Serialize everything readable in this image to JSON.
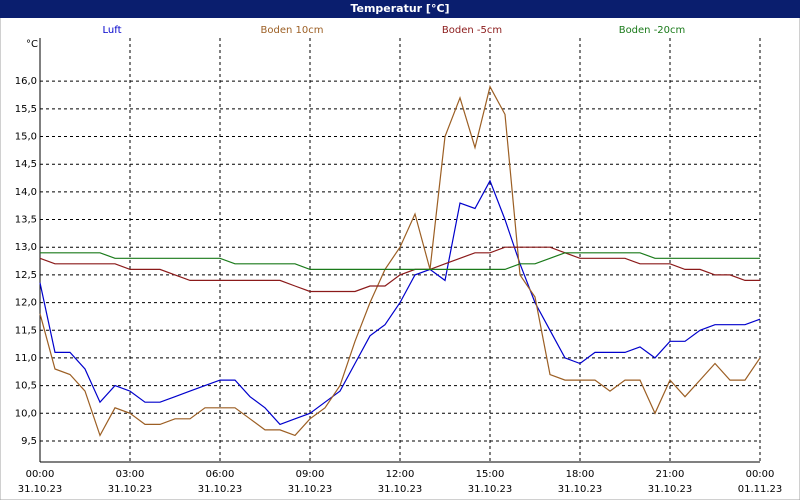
{
  "chart_data": {
    "type": "line",
    "title": "Temperatur [°C]",
    "y_unit": "°C",
    "grid": true,
    "legend": "top",
    "x": [
      0,
      0.5,
      1,
      1.5,
      2,
      2.5,
      3,
      3.5,
      4,
      4.5,
      5,
      5.5,
      6,
      6.5,
      7,
      7.5,
      8,
      8.5,
      9,
      9.5,
      10,
      10.5,
      11,
      11.5,
      12,
      12.5,
      13,
      13.5,
      14,
      14.5,
      15,
      15.5,
      16,
      16.5,
      17,
      17.5,
      18,
      18.5,
      19,
      19.5,
      20,
      20.5,
      21,
      21.5,
      22,
      22.5,
      23,
      23.5,
      24
    ],
    "xlim": [
      0,
      24
    ],
    "xticks": [
      {
        "value": 0,
        "label": "00:00"
      },
      {
        "value": 3,
        "label": "03:00"
      },
      {
        "value": 6,
        "label": "06:00"
      },
      {
        "value": 9,
        "label": "09:00"
      },
      {
        "value": 12,
        "label": "12:00"
      },
      {
        "value": 15,
        "label": "15:00"
      },
      {
        "value": 18,
        "label": "18:00"
      },
      {
        "value": 21,
        "label": "21:00"
      },
      {
        "value": 24,
        "label": "00:00"
      }
    ],
    "xtick_dates": [
      "31.10.23",
      "31.10.23",
      "31.10.23",
      "31.10.23",
      "31.10.23",
      "31.10.23",
      "31.10.23",
      "31.10.23",
      "01.11.23"
    ],
    "ylim": [
      9.12,
      16.78
    ],
    "yticks": [
      {
        "value": 9.5,
        "label": "9,5"
      },
      {
        "value": 10,
        "label": "10,0"
      },
      {
        "value": 10.5,
        "label": "10,5"
      },
      {
        "value": 11,
        "label": "11,0"
      },
      {
        "value": 11.5,
        "label": "11,5"
      },
      {
        "value": 12,
        "label": "12,0"
      },
      {
        "value": 12.5,
        "label": "12,5"
      },
      {
        "value": 13,
        "label": "13,0"
      },
      {
        "value": 13.5,
        "label": "13,5"
      },
      {
        "value": 14,
        "label": "14,0"
      },
      {
        "value": 14.5,
        "label": "14,5"
      },
      {
        "value": 15,
        "label": "15,0"
      },
      {
        "value": 15.5,
        "label": "15,5"
      },
      {
        "value": 16,
        "label": "16,0"
      }
    ],
    "series": [
      {
        "name": "Luft",
        "color": "#0000cc",
        "values": [
          12.36,
          11.1,
          11.1,
          10.8,
          10.2,
          10.5,
          10.4,
          10.2,
          10.2,
          10.3,
          10.4,
          10.5,
          10.6,
          10.6,
          10.3,
          10.1,
          9.8,
          9.9,
          10.0,
          10.2,
          10.4,
          10.9,
          11.4,
          11.6,
          12.0,
          12.5,
          12.6,
          12.4,
          13.8,
          13.7,
          14.2,
          13.5,
          12.7,
          12.0,
          11.5,
          11.0,
          10.9,
          11.1,
          11.1,
          11.1,
          11.2,
          11.0,
          11.3,
          11.3,
          11.5,
          11.6,
          11.6,
          11.6,
          11.7
        ]
      },
      {
        "name": "Boden 10cm",
        "color": "#9c5f24",
        "values": [
          11.8,
          10.8,
          10.7,
          10.4,
          9.6,
          10.1,
          10.0,
          9.8,
          9.8,
          9.9,
          9.9,
          10.1,
          10.1,
          10.1,
          9.9,
          9.7,
          9.7,
          9.6,
          9.9,
          10.1,
          10.5,
          11.3,
          12.0,
          12.6,
          13.0,
          13.6,
          12.6,
          15.0,
          15.7,
          14.8,
          15.9,
          15.4,
          12.5,
          12.1,
          10.7,
          10.6,
          10.6,
          10.6,
          10.4,
          10.6,
          10.6,
          10.0,
          10.6,
          10.3,
          10.6,
          10.9,
          10.6,
          10.6,
          11.0
        ]
      },
      {
        "name": "Boden -5cm",
        "color": "#8b1a1a",
        "values": [
          12.8,
          12.7,
          12.7,
          12.7,
          12.7,
          12.7,
          12.6,
          12.6,
          12.6,
          12.5,
          12.4,
          12.4,
          12.4,
          12.4,
          12.4,
          12.4,
          12.4,
          12.3,
          12.2,
          12.2,
          12.2,
          12.2,
          12.3,
          12.3,
          12.5,
          12.6,
          12.6,
          12.7,
          12.8,
          12.9,
          12.9,
          13.0,
          13.0,
          13.0,
          13.0,
          12.9,
          12.8,
          12.8,
          12.8,
          12.8,
          12.7,
          12.7,
          12.7,
          12.6,
          12.6,
          12.5,
          12.5,
          12.4,
          12.4
        ]
      },
      {
        "name": "Boden -20cm",
        "color": "#1a7a1a",
        "values": [
          12.9,
          12.9,
          12.9,
          12.9,
          12.9,
          12.8,
          12.8,
          12.8,
          12.8,
          12.8,
          12.8,
          12.8,
          12.8,
          12.7,
          12.7,
          12.7,
          12.7,
          12.7,
          12.6,
          12.6,
          12.6,
          12.6,
          12.6,
          12.6,
          12.6,
          12.6,
          12.6,
          12.6,
          12.6,
          12.6,
          12.6,
          12.6,
          12.7,
          12.7,
          12.8,
          12.9,
          12.9,
          12.9,
          12.9,
          12.9,
          12.9,
          12.8,
          12.8,
          12.8,
          12.8,
          12.8,
          12.8,
          12.8,
          12.8
        ]
      }
    ]
  }
}
